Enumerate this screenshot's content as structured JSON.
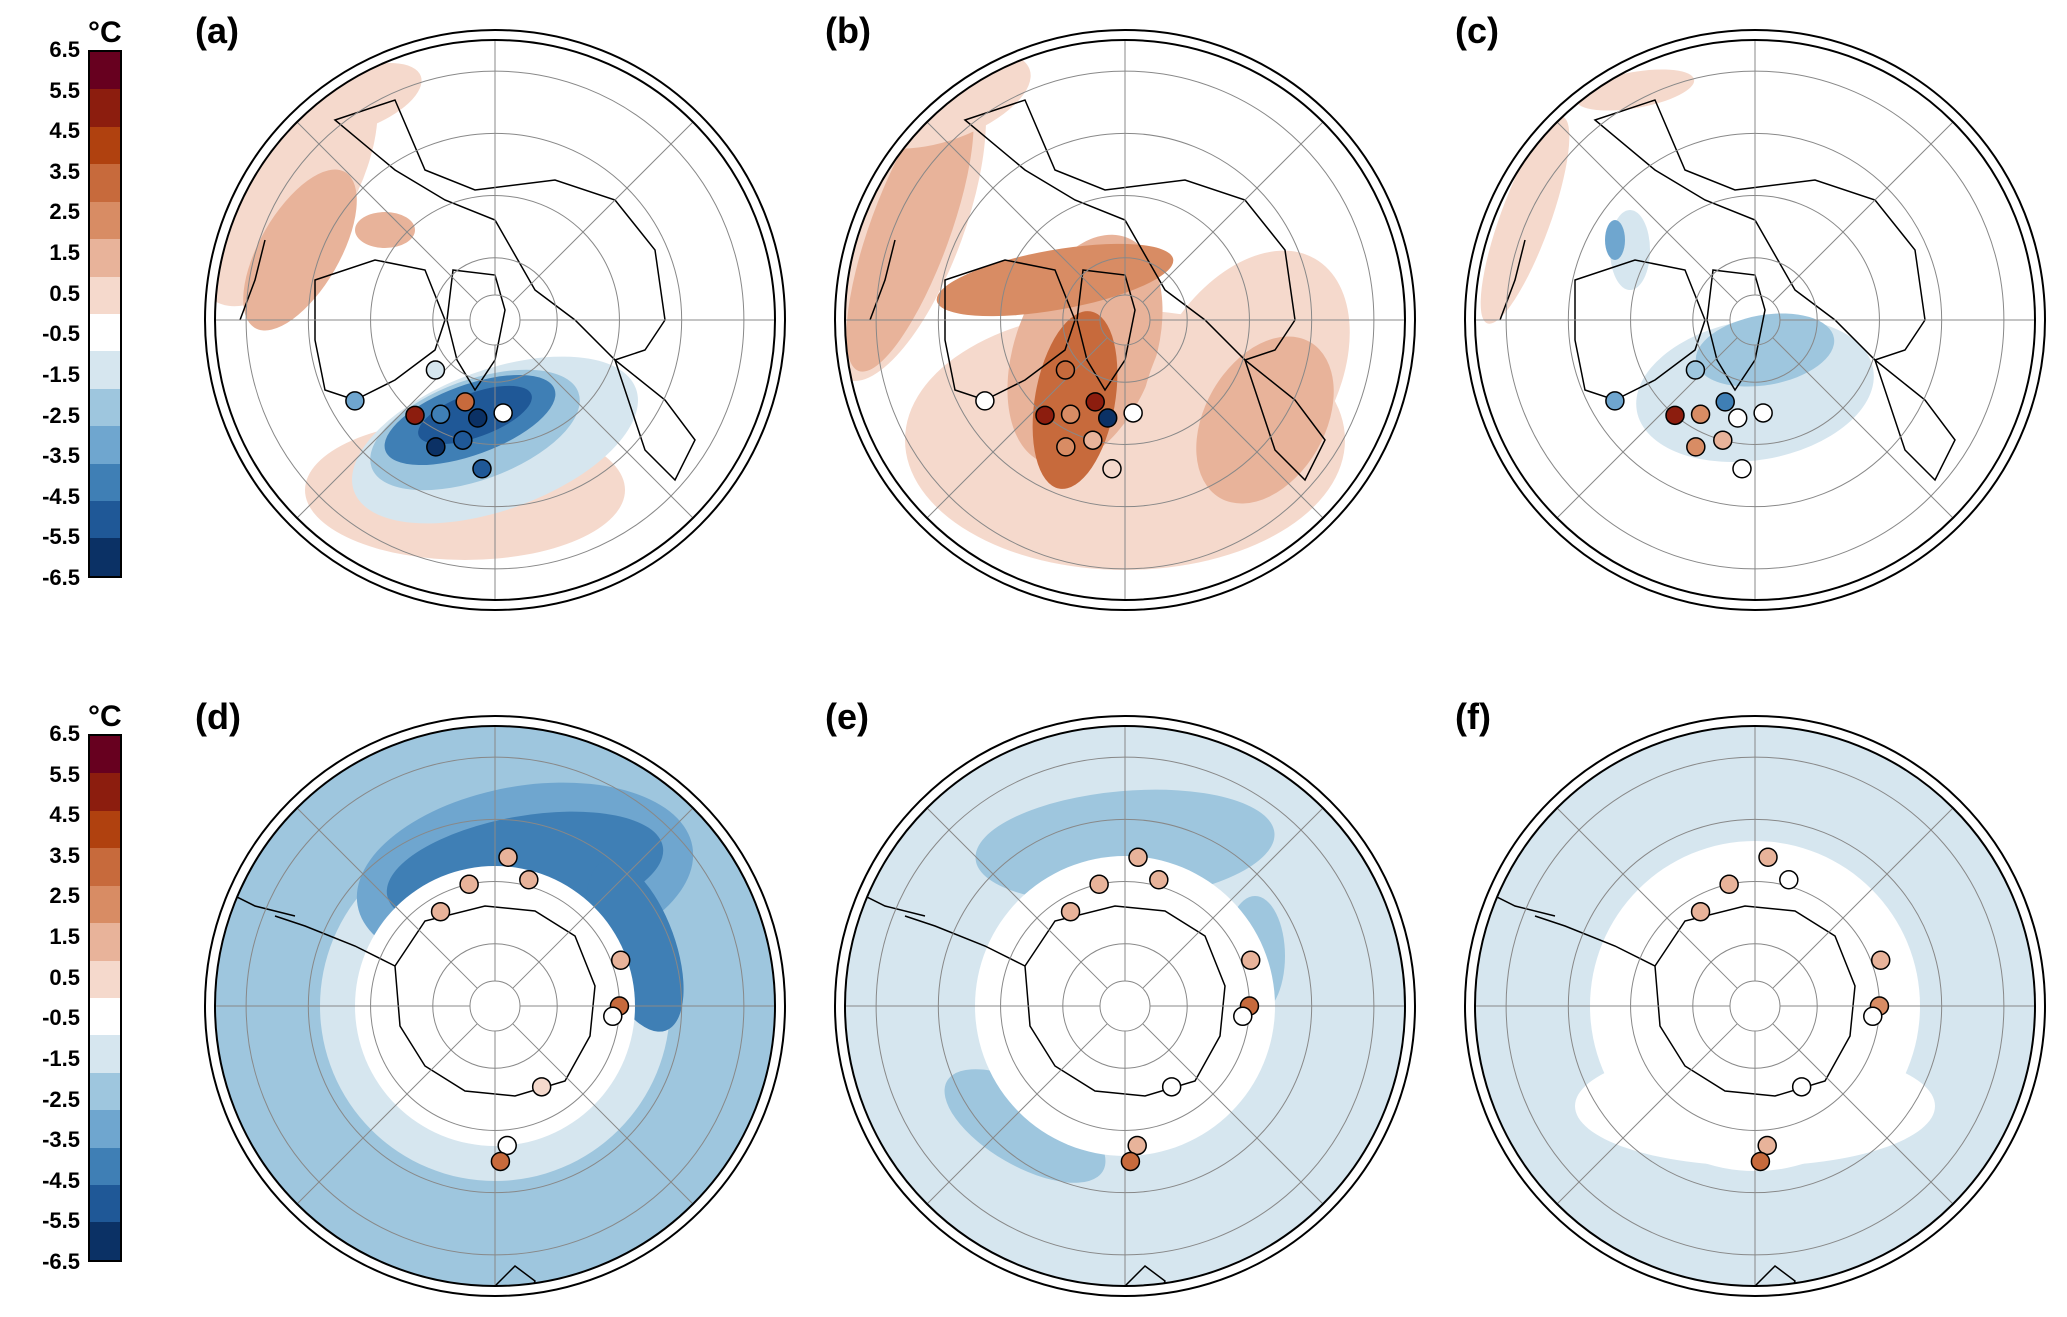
{
  "colorbar": {
    "unit": "°C",
    "ticks": [
      "6.5",
      "5.5",
      "4.5",
      "3.5",
      "2.5",
      "1.5",
      "0.5",
      "-0.5",
      "-1.5",
      "-2.5",
      "-3.5",
      "-4.5",
      "-5.5",
      "-6.5"
    ],
    "colors": [
      "#67001f",
      "#8c1d0e",
      "#b0410f",
      "#c76a3c",
      "#d88c64",
      "#e8b39a",
      "#f5d9cc",
      "#ffffff",
      "#d6e6ef",
      "#9ec6de",
      "#6fa6cf",
      "#3f7fb5",
      "#1f5897",
      "#0b3165"
    ]
  },
  "panels": [
    {
      "label": "(a)",
      "hemisphere": "north",
      "field": "cooling-north-atlantic",
      "markers": [
        {
          "lon": -20,
          "lat": 62,
          "color": "#c76a3c"
        },
        {
          "lon": -10,
          "lat": 58,
          "color": "#0b3165"
        },
        {
          "lon": -30,
          "lat": 55,
          "color": "#3f7fb5"
        },
        {
          "lon": -15,
          "lat": 50,
          "color": "#1f5897"
        },
        {
          "lon": -40,
          "lat": 50,
          "color": "#8c1d0e"
        },
        {
          "lon": -25,
          "lat": 45,
          "color": "#0b3165"
        },
        {
          "lon": -60,
          "lat": 38,
          "color": "#6fa6cf"
        },
        {
          "lon": -5,
          "lat": 42,
          "color": "#1f5897"
        },
        {
          "lon": 5,
          "lat": 60,
          "color": "#ffffff"
        },
        {
          "lon": -50,
          "lat": 65,
          "color": "#d6e6ef"
        }
      ]
    },
    {
      "label": "(b)",
      "hemisphere": "north",
      "field": "warming-north-atlantic",
      "markers": [
        {
          "lon": -20,
          "lat": 62,
          "color": "#8c1d0e"
        },
        {
          "lon": -10,
          "lat": 58,
          "color": "#0b3165"
        },
        {
          "lon": -30,
          "lat": 55,
          "color": "#d88c64"
        },
        {
          "lon": -15,
          "lat": 50,
          "color": "#e8b39a"
        },
        {
          "lon": -40,
          "lat": 50,
          "color": "#8c1d0e"
        },
        {
          "lon": -25,
          "lat": 45,
          "color": "#d88c64"
        },
        {
          "lon": -60,
          "lat": 38,
          "color": "#ffffff"
        },
        {
          "lon": -5,
          "lat": 42,
          "color": "#f5d9cc"
        },
        {
          "lon": 5,
          "lat": 60,
          "color": "#ffffff"
        },
        {
          "lon": -50,
          "lat": 65,
          "color": "#c76a3c"
        }
      ]
    },
    {
      "label": "(c)",
      "hemisphere": "north",
      "field": "weak-cooling-north-atlantic",
      "markers": [
        {
          "lon": -20,
          "lat": 62,
          "color": "#3f7fb5"
        },
        {
          "lon": -10,
          "lat": 58,
          "color": "#ffffff"
        },
        {
          "lon": -30,
          "lat": 55,
          "color": "#d88c64"
        },
        {
          "lon": -15,
          "lat": 50,
          "color": "#e8b39a"
        },
        {
          "lon": -40,
          "lat": 50,
          "color": "#8c1d0e"
        },
        {
          "lon": -25,
          "lat": 45,
          "color": "#d88c64"
        },
        {
          "lon": -60,
          "lat": 38,
          "color": "#6fa6cf"
        },
        {
          "lon": -5,
          "lat": 42,
          "color": "#ffffff"
        },
        {
          "lon": 5,
          "lat": 60,
          "color": "#ffffff"
        },
        {
          "lon": -50,
          "lat": 65,
          "color": "#9ec6de"
        }
      ]
    },
    {
      "label": "(d)",
      "hemisphere": "south",
      "field": "strong-southern-ocean-cooling",
      "markers": [
        {
          "lon": 5,
          "lat": -42,
          "color": "#e8b39a"
        },
        {
          "lon": 15,
          "lat": -48,
          "color": "#e8b39a"
        },
        {
          "lon": -12,
          "lat": -50,
          "color": "#e8b39a"
        },
        {
          "lon": -30,
          "lat": -55,
          "color": "#e8b39a"
        },
        {
          "lon": 70,
          "lat": -47,
          "color": "#e8b39a"
        },
        {
          "lon": 90,
          "lat": -50,
          "color": "#c76a3c"
        },
        {
          "lon": 95,
          "lat": -52,
          "color": "#ffffff"
        },
        {
          "lon": 150,
          "lat": -60,
          "color": "#f5d9cc"
        },
        {
          "lon": 175,
          "lat": -45,
          "color": "#ffffff"
        },
        {
          "lon": 178,
          "lat": -40,
          "color": "#c76a3c"
        }
      ]
    },
    {
      "label": "(e)",
      "hemisphere": "south",
      "field": "moderate-southern-ocean-cooling",
      "markers": [
        {
          "lon": 5,
          "lat": -42,
          "color": "#e8b39a"
        },
        {
          "lon": 15,
          "lat": -48,
          "color": "#e8b39a"
        },
        {
          "lon": -12,
          "lat": -50,
          "color": "#e8b39a"
        },
        {
          "lon": -30,
          "lat": -55,
          "color": "#e8b39a"
        },
        {
          "lon": 70,
          "lat": -47,
          "color": "#e8b39a"
        },
        {
          "lon": 90,
          "lat": -50,
          "color": "#c76a3c"
        },
        {
          "lon": 95,
          "lat": -52,
          "color": "#ffffff"
        },
        {
          "lon": 150,
          "lat": -60,
          "color": "#ffffff"
        },
        {
          "lon": 175,
          "lat": -45,
          "color": "#e8b39a"
        },
        {
          "lon": 178,
          "lat": -40,
          "color": "#c76a3c"
        }
      ]
    },
    {
      "label": "(f)",
      "hemisphere": "south",
      "field": "weak-southern-ocean-cooling",
      "markers": [
        {
          "lon": 5,
          "lat": -42,
          "color": "#e8b39a"
        },
        {
          "lon": 15,
          "lat": -48,
          "color": "#ffffff"
        },
        {
          "lon": -12,
          "lat": -50,
          "color": "#e8b39a"
        },
        {
          "lon": -30,
          "lat": -55,
          "color": "#e8b39a"
        },
        {
          "lon": 70,
          "lat": -47,
          "color": "#e8b39a"
        },
        {
          "lon": 90,
          "lat": -50,
          "color": "#d88c64"
        },
        {
          "lon": 95,
          "lat": -52,
          "color": "#ffffff"
        },
        {
          "lon": 150,
          "lat": -60,
          "color": "#ffffff"
        },
        {
          "lon": 175,
          "lat": -45,
          "color": "#e8b39a"
        },
        {
          "lon": 178,
          "lat": -40,
          "color": "#c76a3c"
        }
      ]
    }
  ]
}
